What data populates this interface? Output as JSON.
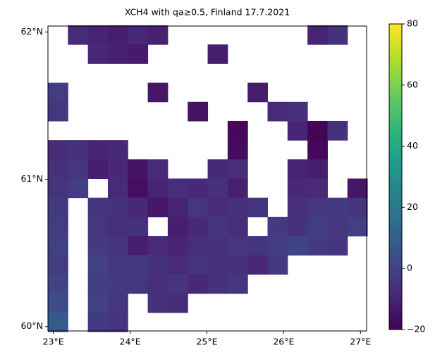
{
  "chart_data": {
    "type": "heatmap",
    "title": "XCH4 with qa≥0.5, Finland 17.7.2021",
    "x": [
      23.06,
      23.32,
      23.58,
      23.84,
      24.1,
      24.36,
      24.62,
      24.88,
      25.14,
      25.4,
      25.66,
      25.92,
      26.18,
      26.44,
      26.7,
      26.96
    ],
    "y": [
      61.98,
      61.85,
      61.72,
      61.59,
      61.46,
      61.33,
      61.2,
      61.07,
      60.94,
      60.81,
      60.68,
      60.55,
      60.42,
      60.29,
      60.16,
      60.03
    ],
    "values": [
      [
        null,
        -8,
        -10,
        -12,
        -9,
        -11,
        null,
        null,
        null,
        null,
        null,
        null,
        null,
        -10,
        -6,
        null
      ],
      [
        null,
        null,
        -9,
        -11,
        -13,
        null,
        null,
        null,
        -12,
        null,
        null,
        null,
        null,
        null,
        null,
        null
      ],
      [
        null,
        null,
        null,
        null,
        null,
        null,
        null,
        null,
        null,
        null,
        null,
        null,
        null,
        null,
        null,
        null
      ],
      [
        -2,
        null,
        null,
        null,
        null,
        -14,
        null,
        null,
        null,
        null,
        -12,
        null,
        null,
        null,
        null,
        null
      ],
      [
        -4,
        null,
        null,
        null,
        null,
        null,
        null,
        -15,
        null,
        null,
        null,
        -8,
        -6,
        null,
        null,
        null
      ],
      [
        null,
        null,
        null,
        null,
        null,
        null,
        null,
        null,
        null,
        -18,
        null,
        null,
        -10,
        -19,
        -6,
        null
      ],
      [
        -8,
        -6,
        -10,
        -9,
        null,
        null,
        null,
        null,
        null,
        -17,
        null,
        null,
        null,
        -18,
        null,
        null
      ],
      [
        -6,
        -4,
        -12,
        -9,
        -15,
        -8,
        null,
        null,
        -9,
        -7,
        null,
        null,
        -10,
        -12,
        null,
        null
      ],
      [
        -5,
        -2,
        null,
        -8,
        -16,
        -10,
        -7,
        -9,
        -6,
        -11,
        null,
        null,
        -9,
        -8,
        null,
        -14
      ],
      [
        -3,
        null,
        -5,
        -6,
        -9,
        -14,
        -10,
        -4,
        -8,
        -6,
        -5,
        null,
        -7,
        -4,
        -3,
        -5
      ],
      [
        -2,
        null,
        -4,
        -7,
        -6,
        null,
        -12,
        -9,
        -5,
        -7,
        null,
        -3,
        -6,
        -2,
        -4,
        -1
      ],
      [
        -1,
        null,
        -3,
        -5,
        -12,
        -8,
        -10,
        -7,
        -6,
        -4,
        -5,
        -2,
        0,
        -3,
        -5,
        null
      ],
      [
        -2,
        null,
        -1,
        -4,
        -3,
        -6,
        -8,
        -5,
        -7,
        -6,
        -9,
        -4,
        null,
        null,
        null,
        null
      ],
      [
        0,
        null,
        -2,
        -3,
        -4,
        -7,
        -5,
        -9,
        -6,
        -4,
        null,
        null,
        null,
        null,
        null,
        null
      ],
      [
        3,
        null,
        -1,
        -4,
        null,
        -6,
        -8,
        null,
        null,
        null,
        null,
        null,
        null,
        null,
        null,
        null
      ],
      [
        8,
        null,
        -3,
        -5,
        null,
        null,
        null,
        null,
        null,
        null,
        null,
        null,
        null,
        null,
        null,
        null
      ]
    ],
    "xlim": [
      22.93,
      27.08
    ],
    "ylim": [
      59.97,
      62.04
    ],
    "xticks": [
      {
        "value": 23,
        "label": "23°E"
      },
      {
        "value": 24,
        "label": "24°E"
      },
      {
        "value": 25,
        "label": "25°E"
      },
      {
        "value": 26,
        "label": "26°E"
      },
      {
        "value": 27,
        "label": "27°E"
      }
    ],
    "yticks": [
      {
        "value": 60,
        "label": "60°N"
      },
      {
        "value": 61,
        "label": "61°N"
      },
      {
        "value": 62,
        "label": "62°N"
      }
    ],
    "clim": [
      -20,
      80
    ],
    "cticks": [
      {
        "value": -20,
        "label": "−20"
      },
      0,
      20,
      40,
      60,
      80
    ]
  }
}
